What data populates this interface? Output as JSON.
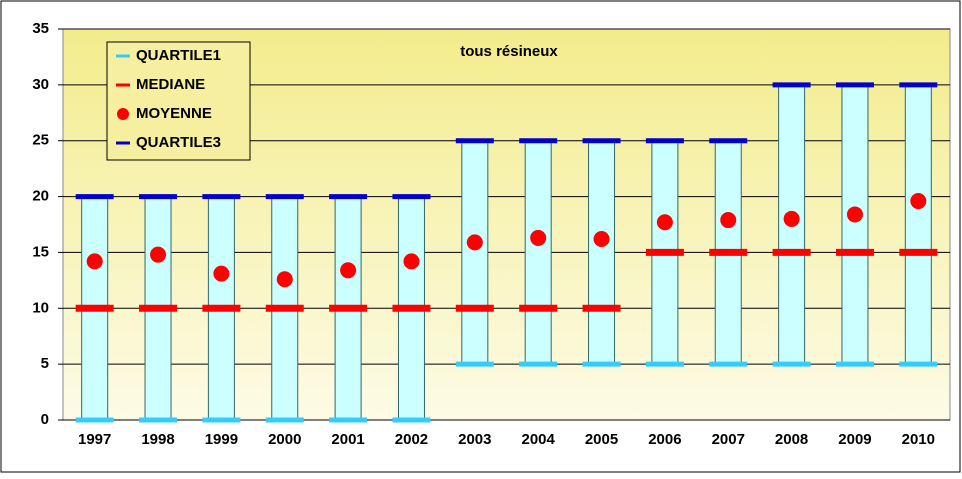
{
  "chart_data": {
    "type": "box",
    "title": "tous résineux",
    "categories": [
      "1997",
      "1998",
      "1999",
      "2000",
      "2001",
      "2002",
      "2003",
      "2004",
      "2005",
      "2006",
      "2007",
      "2008",
      "2009",
      "2010"
    ],
    "series": [
      {
        "name": "QUARTILE1",
        "color": "#33ccff",
        "values": [
          0,
          0,
          0,
          0,
          0,
          0,
          5,
          5,
          5,
          5,
          5,
          5,
          5,
          5
        ]
      },
      {
        "name": "MEDIANE",
        "color": "#ff0000",
        "values": [
          10,
          10,
          10,
          10,
          10,
          10,
          10,
          10,
          10,
          15,
          15,
          15,
          15,
          15
        ]
      },
      {
        "name": "MOYENNE",
        "color": "#ff0000",
        "values": [
          14.2,
          14.8,
          13.1,
          12.6,
          13.4,
          14.2,
          15.9,
          16.3,
          16.2,
          17.7,
          17.9,
          18.0,
          18.4,
          19.6
        ]
      },
      {
        "name": "QUARTILE3",
        "color": "#0000cc",
        "values": [
          20,
          20,
          20,
          20,
          20,
          20,
          25,
          25,
          25,
          25,
          25,
          30,
          30,
          30
        ]
      }
    ],
    "ylim": [
      0,
      35
    ],
    "yticks": [
      0,
      5,
      10,
      15,
      20,
      25,
      30,
      35
    ],
    "grid": true
  }
}
